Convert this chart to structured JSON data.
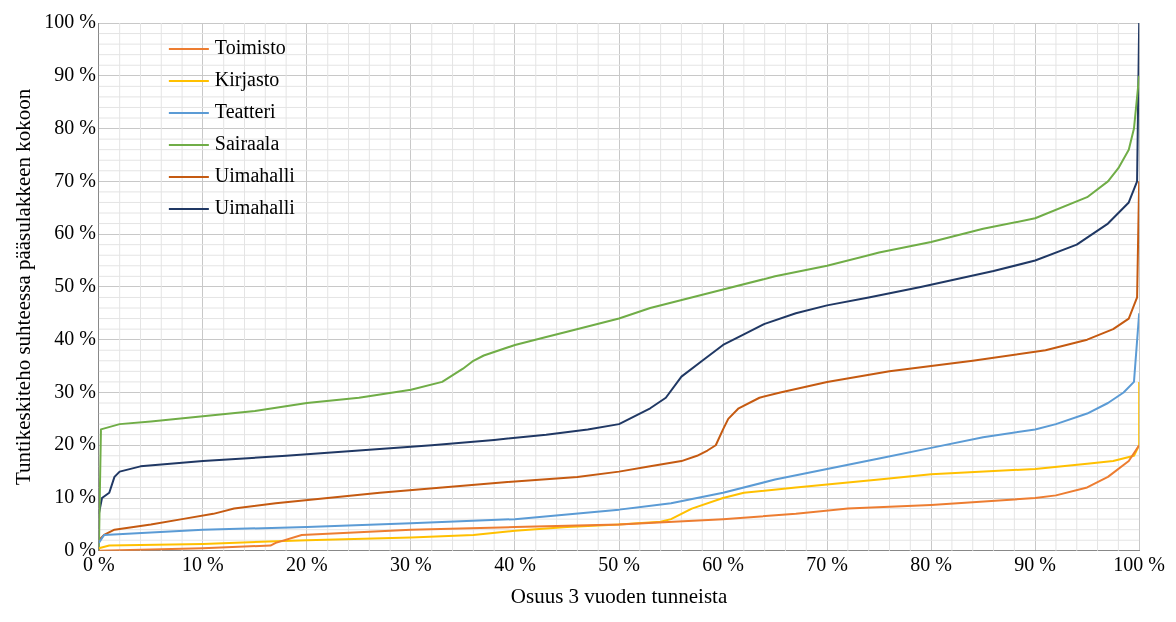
{
  "chart_data": {
    "type": "line",
    "xlabel": "Osuus 3 vuoden tunneista",
    "ylabel": "Tuntikeskiteho suhteessa pääsulakkeen kokoon",
    "xlim": [
      0,
      100
    ],
    "ylim": [
      0,
      100
    ],
    "xticks": [
      {
        "value": 0,
        "label": "0 %"
      },
      {
        "value": 10,
        "label": "10 %"
      },
      {
        "value": 20,
        "label": "20 %"
      },
      {
        "value": 30,
        "label": "30 %"
      },
      {
        "value": 40,
        "label": "40 %"
      },
      {
        "value": 50,
        "label": "50 %"
      },
      {
        "value": 60,
        "label": "60 %"
      },
      {
        "value": 70,
        "label": "70 %"
      },
      {
        "value": 80,
        "label": "80 %"
      },
      {
        "value": 90,
        "label": "90 %"
      },
      {
        "value": 100,
        "label": "100 %"
      }
    ],
    "yticks": [
      {
        "value": 0,
        "label": "0 %"
      },
      {
        "value": 10,
        "label": "10 %"
      },
      {
        "value": 20,
        "label": "20 %"
      },
      {
        "value": 30,
        "label": "30 %"
      },
      {
        "value": 40,
        "label": "40 %"
      },
      {
        "value": 50,
        "label": "50 %"
      },
      {
        "value": 60,
        "label": "60 %"
      },
      {
        "value": 70,
        "label": "70 %"
      },
      {
        "value": 80,
        "label": "80 %"
      },
      {
        "value": 90,
        "label": "90 %"
      },
      {
        "value": 100,
        "label": "100 %"
      }
    ],
    "grid": true,
    "legend": "top left",
    "marker": "none",
    "line_style": "solid",
    "series": [
      {
        "name": "Toimisto",
        "color": "#ed7d31",
        "x": [
          0,
          10,
          16.5,
          17,
          19.5,
          25,
          30,
          40,
          50,
          60,
          67,
          72,
          80,
          90,
          92,
          95,
          97,
          99,
          100
        ],
        "values": [
          0,
          0.5,
          1,
          1.5,
          3,
          3.5,
          4,
          4.5,
          5,
          6,
          7,
          8,
          8.7,
          10,
          10.5,
          12,
          14,
          17,
          20
        ]
      },
      {
        "name": "Kirjasto",
        "color": "#ffc000",
        "x": [
          0,
          1,
          10,
          20,
          30,
          36,
          40,
          45,
          50,
          54,
          55,
          57,
          60,
          62,
          67,
          75,
          80,
          90,
          95,
          97.5,
          99.5,
          100,
          100
        ],
        "values": [
          0.5,
          1,
          1.3,
          2,
          2.5,
          3,
          3.8,
          4.5,
          5,
          5.5,
          6,
          8,
          10,
          11,
          12,
          13.5,
          14.5,
          15.5,
          16.5,
          17,
          18,
          20,
          32
        ]
      },
      {
        "name": "Teatteri",
        "color": "#5b9bd5",
        "x": [
          0,
          0.5,
          10,
          20,
          30,
          40,
          50,
          55,
          60,
          65,
          70,
          75,
          80,
          85,
          90,
          92,
          95,
          97,
          98.5,
          99.5,
          100
        ],
        "values": [
          1.5,
          3,
          4,
          4.5,
          5.2,
          6,
          7.8,
          9,
          11,
          13.5,
          15.5,
          17.5,
          19.5,
          21.5,
          23,
          24,
          26,
          28,
          30,
          32,
          45
        ]
      },
      {
        "name": "Sairaala",
        "color": "#70ad47",
        "x": [
          0,
          0.2,
          2,
          5,
          10,
          15,
          20,
          25,
          30,
          33,
          35,
          36,
          37,
          40,
          43,
          45,
          50,
          53,
          60,
          65,
          70,
          75,
          80,
          85,
          90,
          95,
          97,
          98,
          99,
          99.5,
          100
        ],
        "values": [
          0,
          23,
          24,
          24.5,
          25.5,
          26.5,
          28,
          29,
          30.5,
          32,
          34.5,
          36,
          37,
          39,
          40.5,
          41.5,
          44,
          46,
          49.5,
          52,
          54,
          56.5,
          58.5,
          61,
          63,
          67,
          70,
          72.5,
          76,
          80,
          90
        ]
      },
      {
        "name": "Uimahalli",
        "color": "#c55a11",
        "x": [
          0,
          0.5,
          1.5,
          5,
          8,
          11,
          13,
          17,
          22,
          27,
          33,
          39,
          46,
          50,
          53,
          56,
          57.5,
          58.5,
          59.3,
          60,
          60.5,
          61.5,
          63.5,
          65.5,
          70,
          76,
          84,
          91,
          95,
          97.5,
          99,
          99.8,
          100
        ],
        "values": [
          2,
          3,
          4,
          5,
          6,
          7,
          8,
          9,
          10,
          11,
          12,
          13,
          14,
          15,
          16,
          17,
          18,
          19,
          20,
          23,
          25,
          27,
          29,
          30,
          32,
          34,
          36,
          38,
          40,
          42,
          44,
          48,
          70
        ]
      },
      {
        "name": "Uimahalli",
        "color": "#203864",
        "x": [
          0,
          0.3,
          1,
          1.5,
          2,
          4,
          10,
          18,
          25,
          32,
          38,
          43,
          47,
          50,
          51,
          53,
          54.5,
          56,
          58,
          60,
          62,
          64,
          67,
          70,
          74,
          79,
          86,
          90,
          94,
          97,
          99,
          99.8,
          100
        ],
        "values": [
          7,
          10,
          11,
          14,
          15,
          16,
          17,
          18,
          19,
          20,
          21,
          22,
          23,
          24,
          25,
          27,
          29,
          33,
          36,
          39,
          41,
          43,
          45,
          46.5,
          48,
          50,
          53,
          55,
          58,
          62,
          66,
          70,
          100
        ]
      }
    ]
  }
}
